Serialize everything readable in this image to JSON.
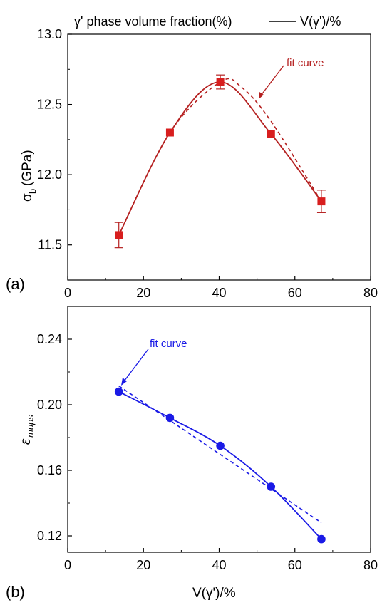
{
  "header": {
    "title": "γ' phase volume fraction(%)",
    "legend_label": "V(γ')/%"
  },
  "chart_data": [
    {
      "panel_label": "(a)",
      "type": "scatter",
      "ylabel_main": "σ",
      "ylabel_sub": "b",
      "ylabel_unit": "(GPa)",
      "xlim": [
        0,
        80
      ],
      "ylim": [
        11.25,
        13.0
      ],
      "xticks": [
        "0",
        "20",
        "40",
        "60",
        "80"
      ],
      "yticks": [
        "11.5",
        "12.0",
        "12.5",
        "13.0"
      ],
      "x": [
        13.5,
        27,
        40.3,
        53.7,
        67
      ],
      "y": [
        11.57,
        12.3,
        12.66,
        12.29,
        11.81
      ],
      "error": [
        0.09,
        null,
        0.05,
        null,
        0.08
      ],
      "color": "#b52020",
      "marker_color": "#d81e1e",
      "annotation": "fit curve",
      "fit_dashed": [
        [
          13.5,
          11.57
        ],
        [
          27,
          12.3
        ],
        [
          40.3,
          12.66
        ],
        [
          46,
          12.62
        ],
        [
          53.7,
          12.38
        ],
        [
          67,
          11.81
        ]
      ]
    },
    {
      "panel_label": "(b)",
      "type": "scatter",
      "ylabel": "ε",
      "ylabel_sub": "mups",
      "xlabel": "V(γ')/%",
      "xlim": [
        0,
        80
      ],
      "ylim": [
        0.11,
        0.26
      ],
      "xticks": [
        "0",
        "20",
        "40",
        "60",
        "80"
      ],
      "yticks": [
        "0.12",
        "0.16",
        "0.20",
        "0.24"
      ],
      "x": [
        13.5,
        27,
        40.3,
        53.7,
        67
      ],
      "y": [
        0.208,
        0.192,
        0.175,
        0.15,
        0.118
      ],
      "color": "#1a1ae6",
      "annotation": "fit curve",
      "fit_dashed": [
        [
          13.5,
          0.2115
        ],
        [
          67,
          0.128
        ]
      ]
    }
  ]
}
